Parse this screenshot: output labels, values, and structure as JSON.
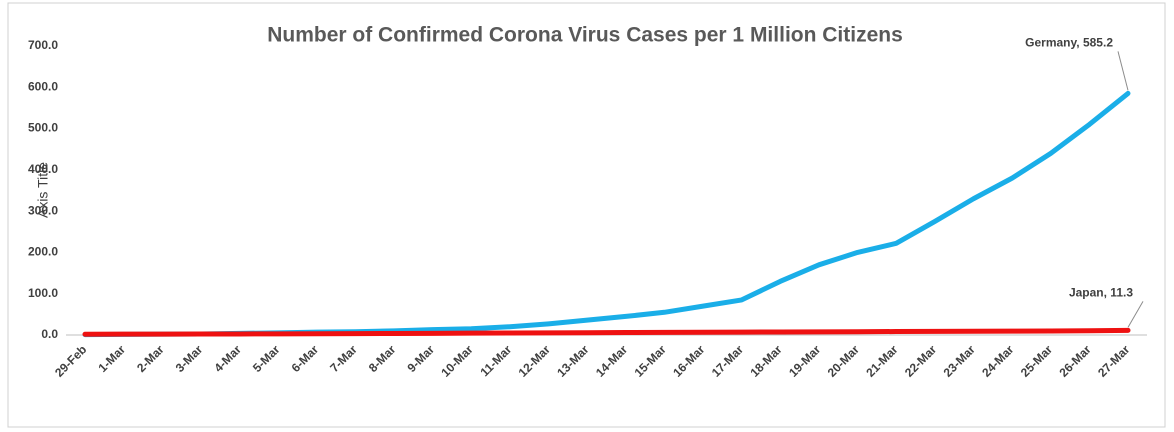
{
  "chart_data": {
    "type": "line",
    "title": "Number of Confirmed Corona Virus Cases per 1 Million Citizens",
    "y_axis_label": "Axis Title",
    "categories": [
      "29-Feb",
      "1-Mar",
      "2-Mar",
      "3-Mar",
      "4-Mar",
      "5-Mar",
      "6-Mar",
      "7-Mar",
      "8-Mar",
      "9-Mar",
      "10-Mar",
      "11-Mar",
      "12-Mar",
      "13-Mar",
      "14-Mar",
      "15-Mar",
      "16-Mar",
      "17-Mar",
      "18-Mar",
      "19-Mar",
      "20-Mar",
      "21-Mar",
      "22-Mar",
      "23-Mar",
      "24-Mar",
      "25-Mar",
      "26-Mar",
      "27-Mar"
    ],
    "series": [
      {
        "name": "Germany",
        "color": "#1aaee8",
        "values": [
          1,
          1.5,
          2,
          2.5,
          4,
          5,
          7,
          8,
          10,
          13,
          15,
          20,
          27,
          36,
          45,
          55,
          70,
          85,
          130,
          170,
          200,
          222,
          275,
          330,
          380,
          440,
          510,
          585.2
        ],
        "value_labels": [
          null,
          null,
          null,
          null,
          null,
          null,
          null,
          null,
          null,
          null,
          null,
          null,
          null,
          null,
          null,
          null,
          null,
          null,
          null,
          null,
          null,
          null,
          null,
          null,
          null,
          null,
          null,
          "Germany, 585.2"
        ]
      },
      {
        "name": "Japan",
        "color": "#ee1111",
        "values": [
          1.9,
          2.0,
          2.1,
          2.3,
          2.5,
          2.7,
          3.0,
          3.3,
          3.6,
          4.0,
          4.4,
          4.8,
          5.2,
          5.6,
          6.0,
          6.4,
          6.8,
          7.1,
          7.4,
          7.7,
          8.0,
          8.4,
          8.7,
          9.0,
          9.4,
          9.8,
          10.4,
          11.3
        ],
        "value_labels": [
          null,
          null,
          null,
          null,
          null,
          null,
          null,
          null,
          null,
          null,
          null,
          null,
          null,
          null,
          null,
          null,
          null,
          null,
          null,
          null,
          null,
          null,
          null,
          null,
          null,
          null,
          null,
          "Japan, 11.3"
        ]
      }
    ],
    "ylim": [
      0,
      700
    ],
    "yticks": [
      {
        "value": 0,
        "label": "0.0"
      },
      {
        "value": 100,
        "label": "100.0"
      },
      {
        "value": 200,
        "label": "200.0"
      },
      {
        "value": 300,
        "label": "300.0"
      },
      {
        "value": 400,
        "label": "400.0"
      },
      {
        "value": 500,
        "label": "500.0"
      },
      {
        "value": 600,
        "label": "600.0"
      },
      {
        "value": 700,
        "label": "700.0"
      }
    ],
    "grid": false
  }
}
